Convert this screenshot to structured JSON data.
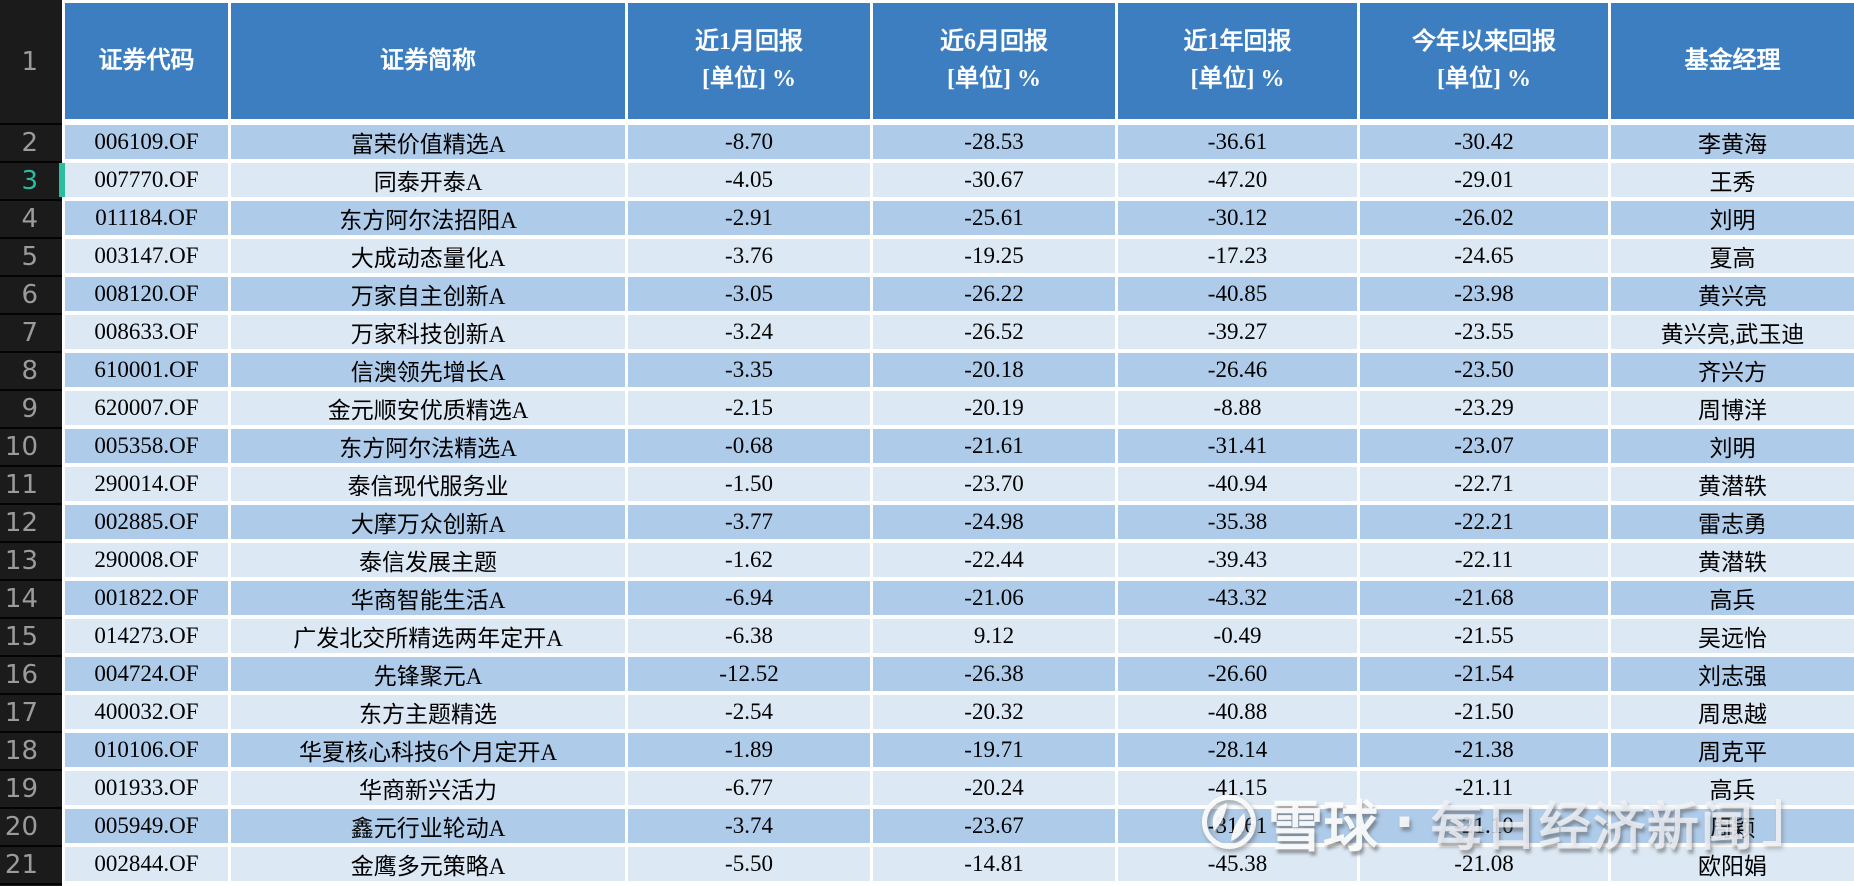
{
  "corner": {
    "label": "1"
  },
  "table": {
    "columns": [
      {
        "key": "code",
        "label": "证券代码",
        "sublabel": ""
      },
      {
        "key": "name",
        "label": "证券简称",
        "sublabel": ""
      },
      {
        "key": "m1",
        "label": "近1月回报",
        "sublabel": "[单位] %"
      },
      {
        "key": "m6",
        "label": "近6月回报",
        "sublabel": "[单位] %"
      },
      {
        "key": "y1",
        "label": "近1年回报",
        "sublabel": "[单位] %"
      },
      {
        "key": "ytd",
        "label": "今年以来回报",
        "sublabel": "[单位] %"
      },
      {
        "key": "manager",
        "label": "基金经理",
        "sublabel": ""
      }
    ],
    "rows": [
      {
        "row_num": "2",
        "code": "006109.OF",
        "name": "富荣价值精选A",
        "m1": "-8.70",
        "m6": "-28.53",
        "y1": "-36.61",
        "ytd": "-30.42",
        "manager": "李黄海",
        "highlighted": false
      },
      {
        "row_num": "3",
        "code": "007770.OF",
        "name": "同泰开泰A",
        "m1": "-4.05",
        "m6": "-30.67",
        "y1": "-47.20",
        "ytd": "-29.01",
        "manager": "王秀",
        "highlighted": true
      },
      {
        "row_num": "4",
        "code": "011184.OF",
        "name": "东方阿尔法招阳A",
        "m1": "-2.91",
        "m6": "-25.61",
        "y1": "-30.12",
        "ytd": "-26.02",
        "manager": "刘明",
        "highlighted": false
      },
      {
        "row_num": "5",
        "code": "003147.OF",
        "name": "大成动态量化A",
        "m1": "-3.76",
        "m6": "-19.25",
        "y1": "-17.23",
        "ytd": "-24.65",
        "manager": "夏高",
        "highlighted": false
      },
      {
        "row_num": "6",
        "code": "008120.OF",
        "name": "万家自主创新A",
        "m1": "-3.05",
        "m6": "-26.22",
        "y1": "-40.85",
        "ytd": "-23.98",
        "manager": "黄兴亮",
        "highlighted": false
      },
      {
        "row_num": "7",
        "code": "008633.OF",
        "name": "万家科技创新A",
        "m1": "-3.24",
        "m6": "-26.52",
        "y1": "-39.27",
        "ytd": "-23.55",
        "manager": "黄兴亮,武玉迪",
        "highlighted": false
      },
      {
        "row_num": "8",
        "code": "610001.OF",
        "name": "信澳领先增长A",
        "m1": "-3.35",
        "m6": "-20.18",
        "y1": "-26.46",
        "ytd": "-23.50",
        "manager": "齐兴方",
        "highlighted": false
      },
      {
        "row_num": "9",
        "code": "620007.OF",
        "name": "金元顺安优质精选A",
        "m1": "-2.15",
        "m6": "-20.19",
        "y1": "-8.88",
        "ytd": "-23.29",
        "manager": "周博洋",
        "highlighted": false
      },
      {
        "row_num": "10",
        "code": "005358.OF",
        "name": "东方阿尔法精选A",
        "m1": "-0.68",
        "m6": "-21.61",
        "y1": "-31.41",
        "ytd": "-23.07",
        "manager": "刘明",
        "highlighted": false
      },
      {
        "row_num": "11",
        "code": "290014.OF",
        "name": "泰信现代服务业",
        "m1": "-1.50",
        "m6": "-23.70",
        "y1": "-40.94",
        "ytd": "-22.71",
        "manager": "黄潜轶",
        "highlighted": false
      },
      {
        "row_num": "12",
        "code": "002885.OF",
        "name": "大摩万众创新A",
        "m1": "-3.77",
        "m6": "-24.98",
        "y1": "-35.38",
        "ytd": "-22.21",
        "manager": "雷志勇",
        "highlighted": false
      },
      {
        "row_num": "13",
        "code": "290008.OF",
        "name": "泰信发展主题",
        "m1": "-1.62",
        "m6": "-22.44",
        "y1": "-39.43",
        "ytd": "-22.11",
        "manager": "黄潜轶",
        "highlighted": false
      },
      {
        "row_num": "14",
        "code": "001822.OF",
        "name": "华商智能生活A",
        "m1": "-6.94",
        "m6": "-21.06",
        "y1": "-43.32",
        "ytd": "-21.68",
        "manager": "高兵",
        "highlighted": false
      },
      {
        "row_num": "15",
        "code": "014273.OF",
        "name": "广发北交所精选两年定开A",
        "m1": "-6.38",
        "m6": "9.12",
        "y1": "-0.49",
        "ytd": "-21.55",
        "manager": "吴远怡",
        "highlighted": false
      },
      {
        "row_num": "16",
        "code": "004724.OF",
        "name": "先锋聚元A",
        "m1": "-12.52",
        "m6": "-26.38",
        "y1": "-26.60",
        "ytd": "-21.54",
        "manager": "刘志强",
        "highlighted": false
      },
      {
        "row_num": "17",
        "code": "400032.OF",
        "name": "东方主题精选",
        "m1": "-2.54",
        "m6": "-20.32",
        "y1": "-40.88",
        "ytd": "-21.50",
        "manager": "周思越",
        "highlighted": false
      },
      {
        "row_num": "18",
        "code": "010106.OF",
        "name": "华夏核心科技6个月定开A",
        "m1": "-1.89",
        "m6": "-19.71",
        "y1": "-28.14",
        "ytd": "-21.38",
        "manager": "周克平",
        "highlighted": false
      },
      {
        "row_num": "19",
        "code": "001933.OF",
        "name": "华商新兴活力",
        "m1": "-6.77",
        "m6": "-20.24",
        "y1": "-41.15",
        "ytd": "-21.11",
        "manager": "高兵",
        "highlighted": false
      },
      {
        "row_num": "20",
        "code": "005949.OF",
        "name": "鑫元行业轮动A",
        "m1": "-3.74",
        "m6": "-23.67",
        "y1": "-31.61",
        "ytd": "-21.10",
        "manager": "周颖",
        "highlighted": false
      },
      {
        "row_num": "21",
        "code": "002844.OF",
        "name": "金鹰多元策略A",
        "m1": "-5.50",
        "m6": "-14.81",
        "y1": "-45.38",
        "ytd": "-21.08",
        "manager": "欧阳娟",
        "highlighted": false
      }
    ]
  },
  "watermark": {
    "site": "雪球",
    "separator": "·",
    "source": "每日经济新闻"
  },
  "colors": {
    "header_bg": "#3C7EC0",
    "row_even_bg": "#AECBE9",
    "row_odd_bg": "#DCE9F5",
    "row_number_bg": "#1B1B1B",
    "row_number_text": "#9B9B9B",
    "highlight_accent": "#2CBD9E",
    "header_text": "#FFFFFF",
    "cell_text": "#000000"
  }
}
